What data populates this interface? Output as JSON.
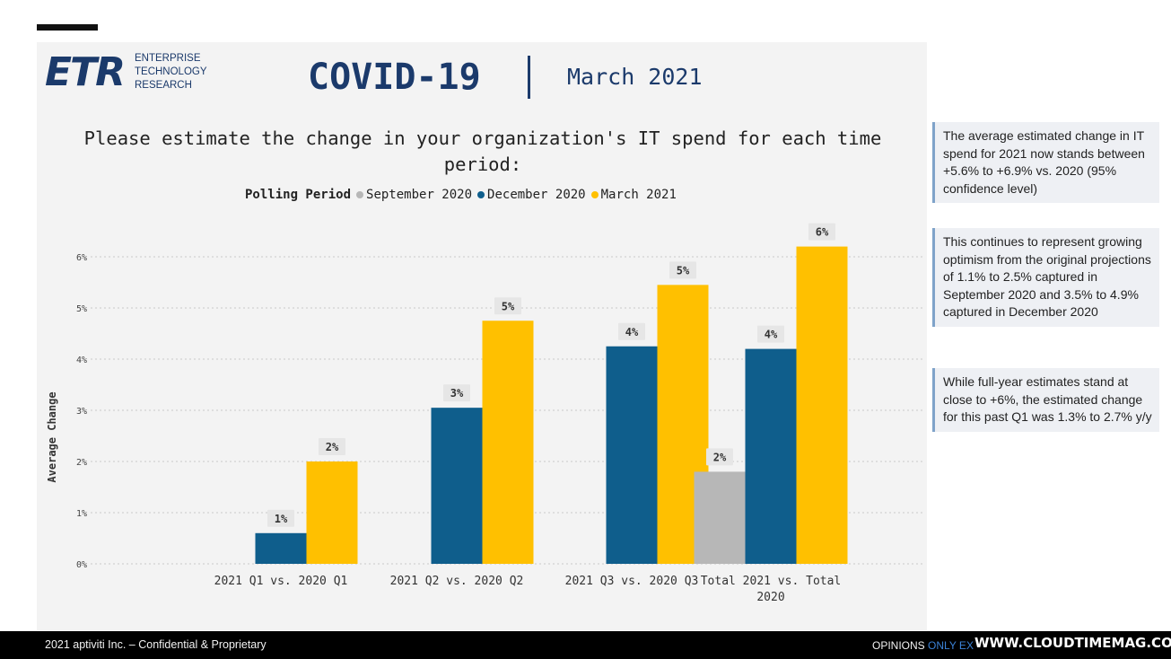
{
  "logo": {
    "letters": "ETR",
    "words": [
      "ENTERPRISE",
      "TECHNOLOGY",
      "RESEARCH"
    ]
  },
  "header": {
    "title": "COVID-19",
    "date": "March 2021"
  },
  "question": "Please estimate the change in your organization's IT spend for each time period:",
  "legend": {
    "title": "Polling Period",
    "items": [
      {
        "label": "September 2020",
        "color": "#b7b7b7"
      },
      {
        "label": "December 2020",
        "color": "#0f5e8c"
      },
      {
        "label": "March 2021",
        "color": "#ffc000"
      }
    ]
  },
  "chart_data": {
    "type": "bar",
    "ylabel": "Average Change",
    "ylim": [
      0,
      6.5
    ],
    "yticks": [
      "0%",
      "1%",
      "2%",
      "3%",
      "4%",
      "5%",
      "6%"
    ],
    "grid": true,
    "legend_position": "top",
    "categories": [
      "2021 Q1 vs. 2020 Q1",
      "2021 Q2 vs. 2020 Q2",
      "2021 Q3 vs. 2020 Q3",
      "Total 2021 vs. Total 2020"
    ],
    "series": [
      {
        "name": "September 2020",
        "color": "#b7b7b7",
        "values": [
          null,
          null,
          null,
          1.8
        ],
        "labels": [
          "",
          "",
          "",
          "2%"
        ]
      },
      {
        "name": "December 2020",
        "color": "#0f5e8c",
        "values": [
          0.6,
          3.05,
          4.25,
          4.2
        ],
        "labels": [
          "1%",
          "3%",
          "4%",
          "4%"
        ]
      },
      {
        "name": "March 2021",
        "color": "#ffc000",
        "values": [
          2.0,
          4.75,
          5.45,
          6.2
        ],
        "labels": [
          "2%",
          "5%",
          "5%",
          "6%"
        ]
      }
    ]
  },
  "notes": [
    "The average estimated change in IT spend for 2021 now stands between +5.6% to +6.9% vs. 2020 (95% confidence level)",
    "This continues to represent growing optimism from the original projections of 1.1% to 2.5% captured in September 2020 and 3.5% to 4.9% captured in December 2020",
    "While full-year estimates stand at close to +6%, the estimated change for this past Q1 was 1.3% to 2.7% y/y"
  ],
  "footer": {
    "left": "2021 aptiviti Inc. – Confidential & Proprietary",
    "right_prefix": "OPINIONS",
    "right_highlight": "ONLY EX",
    "watermark": "WWW.CLOUDTIMEMAG.COM"
  }
}
